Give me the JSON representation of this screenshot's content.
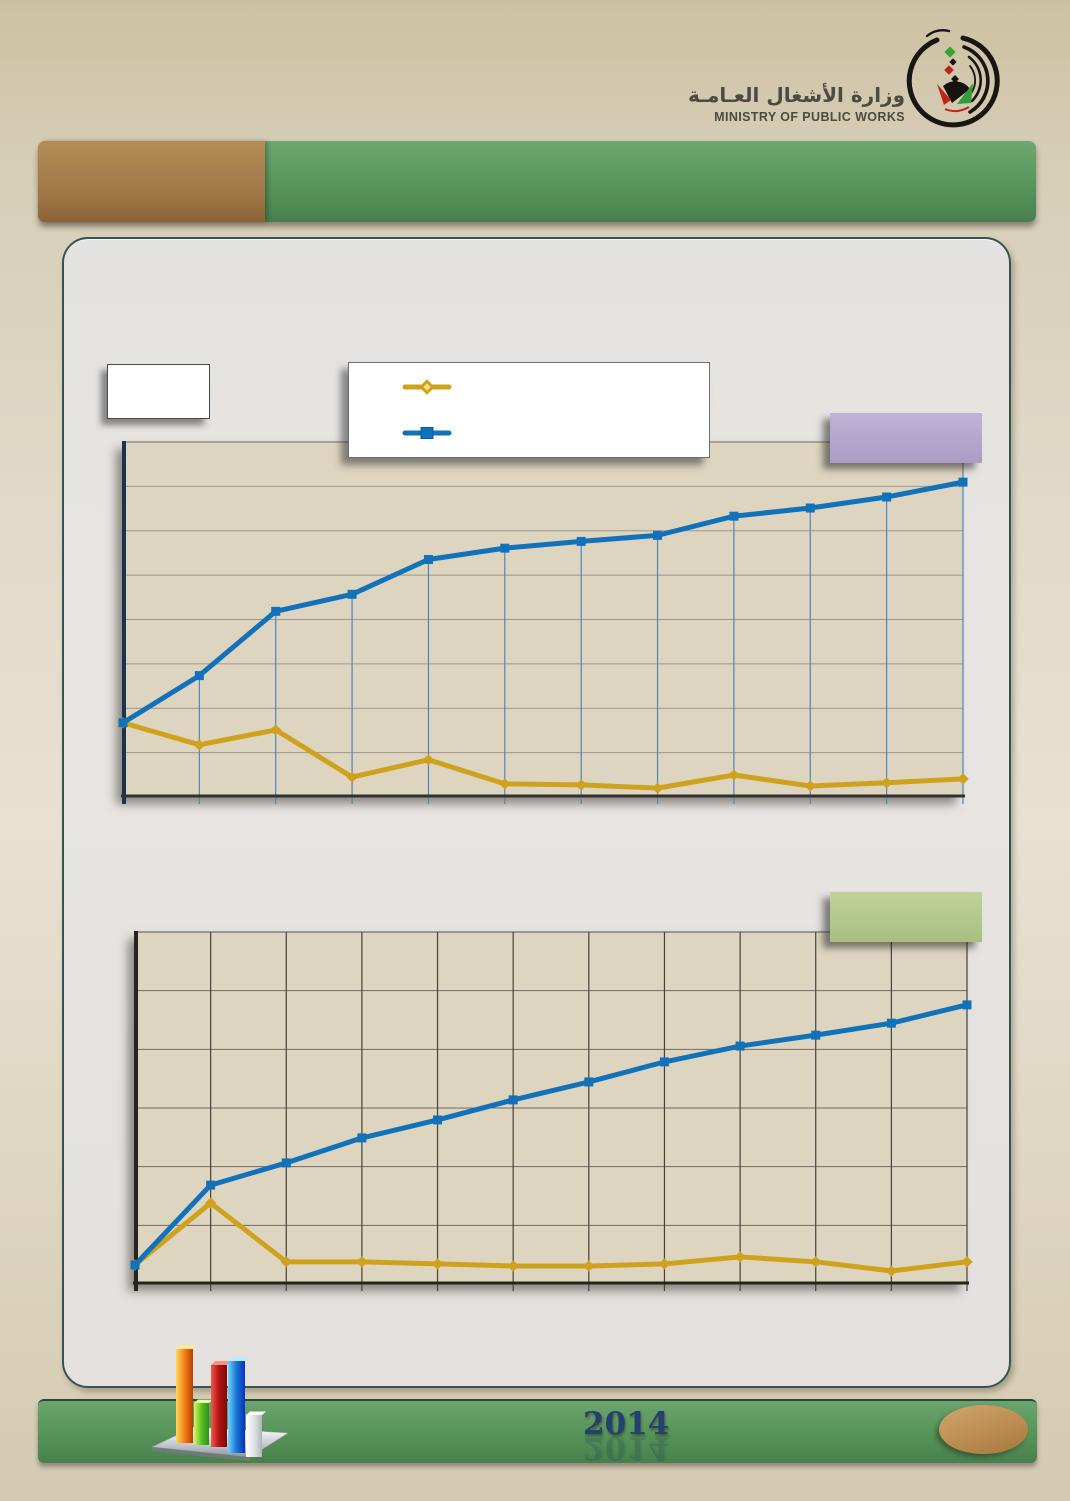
{
  "logo": {
    "arabic_title": "وزارة الأشغال العـامـة",
    "english_title": "MINISTRY OF PUBLIC WORKS"
  },
  "footer": {
    "year_label": "2014"
  },
  "colors": {
    "header_green": "#579559",
    "header_brown": "#a5804e",
    "panel_border": "#36544f",
    "panel_bg": "#e5e2df",
    "plot_bg": "#ded5c0",
    "series_gold": "#cfa21e",
    "series_blue": "#1172ba",
    "label_purple": "#b4a7cd",
    "label_green": "#b6cb90",
    "footer_green": "#579559",
    "ellipse_brown": "#bd8e55",
    "year_text": "#24406e"
  },
  "chart_data": [
    {
      "type": "line",
      "title": "",
      "x": [
        1,
        2,
        3,
        4,
        5,
        6,
        7,
        8,
        9,
        10,
        11,
        12
      ],
      "x_tick_labels": [],
      "y_tick_labels": [],
      "ylim": [
        0,
        100
      ],
      "value_units": "percent-of-plot-height (no numeric axis labels printed)",
      "series": [
        {
          "name": "gold-diamond-series",
          "marker": "diamond",
          "color": "#cfa21e",
          "values": [
            20.9,
            14.7,
            18.9,
            5.6,
            10.5,
            3.7,
            3.4,
            2.5,
            6.2,
            3.1,
            4.0,
            5.1
          ]
        },
        {
          "name": "blue-square-series",
          "marker": "square",
          "color": "#1172ba",
          "values": [
            20.9,
            34.2,
            52.3,
            57.1,
            66.9,
            70.1,
            72.0,
            73.7,
            79.1,
            81.4,
            84.5,
            88.7
          ]
        }
      ],
      "legend": {
        "position": "top-center",
        "entry_labels": [
          "",
          ""
        ]
      },
      "grid": {
        "horizontal_intervals": 8,
        "vertical_lines": "drop-from-blue-points",
        "h_grid_color": "#9b988f",
        "v_line_color": "#4e86b8",
        "plot_bg": "#ded5c0",
        "frame_color": "#6e6b62",
        "left_axis_color": "#1c3350",
        "bottom_axis_color": "#33312b"
      }
    },
    {
      "type": "line",
      "title": "",
      "x": [
        1,
        2,
        3,
        4,
        5,
        6,
        7,
        8,
        9,
        10,
        11,
        12
      ],
      "x_tick_labels": [],
      "y_tick_labels": [],
      "ylim": [
        0,
        100
      ],
      "value_units": "percent-of-plot-height (no numeric axis labels printed)",
      "series": [
        {
          "name": "gold-diamond-series",
          "marker": "diamond",
          "color": "#cfa21e",
          "values": [
            5.4,
            23.0,
            6.3,
            6.3,
            5.7,
            5.1,
            5.1,
            5.7,
            7.7,
            6.3,
            3.7,
            6.3
          ]
        },
        {
          "name": "blue-square-series",
          "marker": "square",
          "color": "#1172ba",
          "values": [
            5.4,
            28.1,
            34.4,
            41.5,
            46.6,
            52.3,
            57.4,
            63.1,
            67.6,
            70.7,
            74.1,
            79.3
          ]
        }
      ],
      "legend": {
        "position": "none",
        "entry_labels": []
      },
      "grid": {
        "horizontal_intervals": 6,
        "vertical_lines": "full-height",
        "h_grid_color": "#6e6b62",
        "v_line_color": "#45423c",
        "plot_bg": "#ded5c0",
        "frame_color": "#55524c",
        "left_axis_color": "#26241f",
        "bottom_axis_color": "#26241f"
      }
    }
  ]
}
